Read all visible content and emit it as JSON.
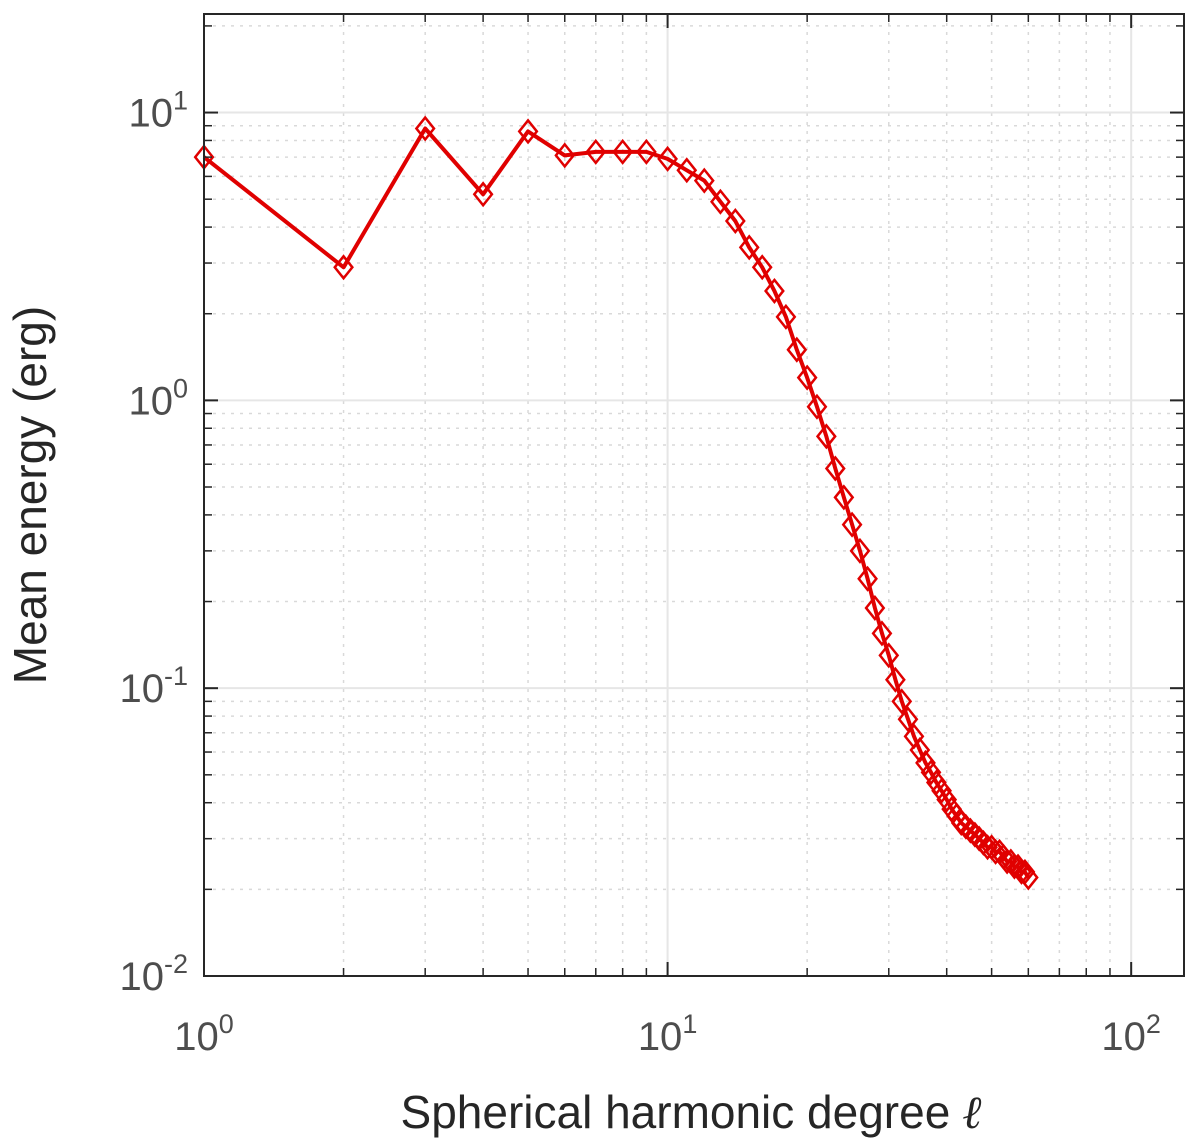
{
  "chart_data": {
    "type": "line",
    "xscale": "log",
    "yscale": "log",
    "xlim": [
      1,
      130
    ],
    "ylim": [
      0.01,
      22
    ],
    "xlabel": "Spherical harmonic degree",
    "xlabel_symbol": "ℓ",
    "ylabel": "Mean energy (erg)",
    "xticks": [
      {
        "value": 1,
        "base": "10",
        "exp": "0"
      },
      {
        "value": 10,
        "base": "10",
        "exp": "1"
      },
      {
        "value": 100,
        "base": "10",
        "exp": "2"
      }
    ],
    "yticks": [
      {
        "value": 0.01,
        "base": "10",
        "exp": "-2"
      },
      {
        "value": 0.1,
        "base": "10",
        "exp": "-1"
      },
      {
        "value": 1,
        "base": "10",
        "exp": "0"
      },
      {
        "value": 10,
        "base": "10",
        "exp": "1"
      }
    ],
    "grid": true,
    "minor_grid": true,
    "series": [
      {
        "color": "#e00000",
        "marker": "diamond",
        "x": [
          1,
          2,
          3,
          4,
          5,
          6,
          7,
          8,
          9,
          10,
          11,
          12,
          13,
          14,
          15,
          16,
          17,
          18,
          19,
          20,
          21,
          22,
          23,
          24,
          25,
          26,
          27,
          28,
          29,
          30,
          31,
          32,
          33,
          34,
          35,
          36,
          37,
          38,
          39,
          40,
          41,
          42,
          43,
          44,
          45,
          46,
          47,
          48,
          49,
          50,
          51,
          52,
          53,
          54,
          55,
          56,
          57,
          58,
          59,
          60
        ],
        "y": [
          7.0,
          2.9,
          8.8,
          5.2,
          8.6,
          7.1,
          7.3,
          7.3,
          7.3,
          6.9,
          6.3,
          5.8,
          4.9,
          4.2,
          3.4,
          2.9,
          2.4,
          1.95,
          1.5,
          1.2,
          0.95,
          0.75,
          0.58,
          0.46,
          0.37,
          0.3,
          0.24,
          0.19,
          0.155,
          0.13,
          0.107,
          0.09,
          0.078,
          0.068,
          0.061,
          0.055,
          0.051,
          0.047,
          0.044,
          0.041,
          0.038,
          0.036,
          0.034,
          0.033,
          0.032,
          0.031,
          0.03,
          0.029,
          0.028,
          0.028,
          0.027,
          0.027,
          0.026,
          0.025,
          0.025,
          0.024,
          0.024,
          0.023,
          0.023,
          0.022
        ]
      }
    ]
  }
}
